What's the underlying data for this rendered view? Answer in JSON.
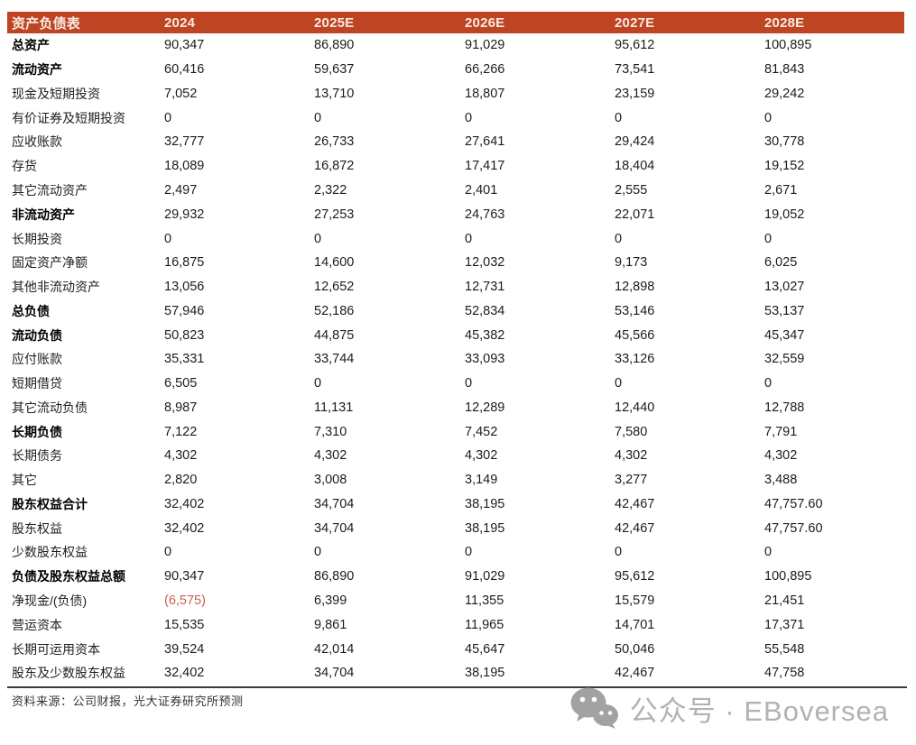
{
  "table": {
    "title": "资产负债表",
    "columns": [
      "2024",
      "2025E",
      "2026E",
      "2027E",
      "2028E"
    ],
    "rows": [
      {
        "label": "总资产",
        "bold": true,
        "values": [
          "90,347",
          "86,890",
          "91,029",
          "95,612",
          "100,895"
        ]
      },
      {
        "label": "流动资产",
        "bold": true,
        "values": [
          "60,416",
          "59,637",
          "66,266",
          "73,541",
          "81,843"
        ]
      },
      {
        "label": "现金及短期投资",
        "bold": false,
        "values": [
          "7,052",
          "13,710",
          "18,807",
          "23,159",
          "29,242"
        ]
      },
      {
        "label": "有价证券及短期投资",
        "bold": false,
        "values": [
          "0",
          "0",
          "0",
          "0",
          "0"
        ]
      },
      {
        "label": "应收账款",
        "bold": false,
        "values": [
          "32,777",
          "26,733",
          "27,641",
          "29,424",
          "30,778"
        ]
      },
      {
        "label": "存货",
        "bold": false,
        "values": [
          "18,089",
          "16,872",
          "17,417",
          "18,404",
          "19,152"
        ]
      },
      {
        "label": "其它流动资产",
        "bold": false,
        "values": [
          "2,497",
          "2,322",
          "2,401",
          "2,555",
          "2,671"
        ]
      },
      {
        "label": "非流动资产",
        "bold": true,
        "values": [
          "29,932",
          "27,253",
          "24,763",
          "22,071",
          "19,052"
        ]
      },
      {
        "label": "长期投资",
        "bold": false,
        "values": [
          "0",
          "0",
          "0",
          "0",
          "0"
        ]
      },
      {
        "label": "固定资产净额",
        "bold": false,
        "values": [
          "16,875",
          "14,600",
          "12,032",
          "9,173",
          "6,025"
        ]
      },
      {
        "label": "其他非流动资产",
        "bold": false,
        "values": [
          "13,056",
          "12,652",
          "12,731",
          "12,898",
          "13,027"
        ]
      },
      {
        "label": "总负债",
        "bold": true,
        "values": [
          "57,946",
          "52,186",
          "52,834",
          "53,146",
          "53,137"
        ]
      },
      {
        "label": "流动负债",
        "bold": true,
        "values": [
          "50,823",
          "44,875",
          "45,382",
          "45,566",
          "45,347"
        ]
      },
      {
        "label": "应付账款",
        "bold": false,
        "values": [
          "35,331",
          "33,744",
          "33,093",
          "33,126",
          "32,559"
        ]
      },
      {
        "label": "短期借贷",
        "bold": false,
        "values": [
          "6,505",
          "0",
          "0",
          "0",
          "0"
        ]
      },
      {
        "label": "其它流动负债",
        "bold": false,
        "values": [
          "8,987",
          "11,131",
          "12,289",
          "12,440",
          "12,788"
        ]
      },
      {
        "label": "长期负债",
        "bold": true,
        "values": [
          "7,122",
          "7,310",
          "7,452",
          "7,580",
          "7,791"
        ]
      },
      {
        "label": "长期债务",
        "bold": false,
        "values": [
          "4,302",
          "4,302",
          "4,302",
          "4,302",
          "4,302"
        ]
      },
      {
        "label": "其它",
        "bold": false,
        "values": [
          "2,820",
          "3,008",
          "3,149",
          "3,277",
          "3,488"
        ]
      },
      {
        "label": "股东权益合计",
        "bold": true,
        "values": [
          "32,402",
          "34,704",
          "38,195",
          "42,467",
          "47,757.60"
        ]
      },
      {
        "label": "股东权益",
        "bold": false,
        "values": [
          "32,402",
          "34,704",
          "38,195",
          "42,467",
          "47,757.60"
        ]
      },
      {
        "label": "少数股东权益",
        "bold": false,
        "values": [
          "0",
          "0",
          "0",
          "0",
          "0"
        ]
      },
      {
        "label": "负债及股东权益总额",
        "bold": true,
        "values": [
          "90,347",
          "86,890",
          "91,029",
          "95,612",
          "100,895"
        ]
      },
      {
        "label": "净现金/(负债)",
        "bold": false,
        "values": [
          "(6,575)",
          "6,399",
          "11,355",
          "15,579",
          "21,451"
        ]
      },
      {
        "label": "营运资本",
        "bold": false,
        "values": [
          "15,535",
          "9,861",
          "11,965",
          "14,701",
          "17,371"
        ]
      },
      {
        "label": "长期可运用资本",
        "bold": false,
        "values": [
          "39,524",
          "42,014",
          "45,647",
          "50,046",
          "55,548"
        ]
      },
      {
        "label": "股东及少数股东权益",
        "bold": false,
        "values": [
          "32,402",
          "34,704",
          "38,195",
          "42,467",
          "47,758"
        ]
      }
    ]
  },
  "footer": {
    "source": "资料来源：公司财报，光大证券研究所预测"
  },
  "watermark": {
    "icon": "wechat-icon",
    "text": "公众号 · EBoversea"
  },
  "colors": {
    "header_bg": "#BF4424",
    "header_text": "#F8ECE1",
    "negative_text": "#C75F57",
    "watermark_text": "#B2B2B2",
    "divider": "#3A3A3A"
  }
}
